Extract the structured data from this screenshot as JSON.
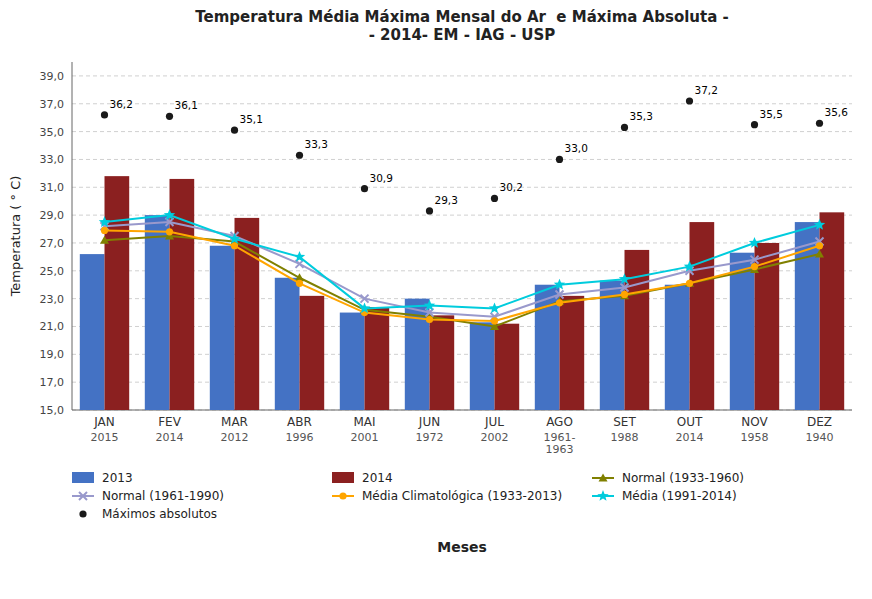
{
  "chart_data": {
    "type": "bar",
    "title": "Temperatura Média Máxima Mensal do Ar  e Máxima Absoluta -\n- 2014- EM - IAG - USP",
    "x_label": "Meses",
    "y_label": "Temperatura ( ° C)",
    "categories": [
      "JAN",
      "FEV",
      "MAR",
      "ABR",
      "MAI",
      "JUN",
      "JUL",
      "AGO",
      "SET",
      "OUT",
      "NOV",
      "DEZ"
    ],
    "category_sublabels": [
      "2015",
      "2014",
      "2012",
      "1996",
      "2001",
      "1972",
      "2002",
      "1961-\n1963",
      "1988",
      "2014",
      "1958",
      "1940"
    ],
    "series": [
      {
        "name": "2013",
        "type": "bar",
        "color": "#4472C4",
        "values": [
          26.2,
          29.0,
          26.8,
          24.5,
          22.0,
          23.0,
          21.3,
          24.0,
          24.3,
          24.0,
          26.3,
          28.5
        ]
      },
      {
        "name": "2014",
        "type": "bar",
        "color": "#8B2020",
        "values": [
          31.8,
          31.6,
          28.8,
          23.2,
          22.4,
          21.8,
          21.2,
          23.2,
          26.5,
          28.5,
          27.0,
          29.2
        ]
      },
      {
        "name": "Normal (1933-1960)",
        "type": "line",
        "color": "#808000",
        "marker": "triangle",
        "values": [
          27.2,
          27.5,
          27.1,
          24.5,
          22.2,
          21.7,
          21.0,
          22.8,
          23.2,
          24.1,
          25.1,
          26.2
        ]
      },
      {
        "name": "Normal (1961-1990)",
        "type": "line",
        "color": "#9999CC",
        "marker": "x",
        "values": [
          28.2,
          28.5,
          27.5,
          25.5,
          23.0,
          22.0,
          21.7,
          23.3,
          23.8,
          25.0,
          25.8,
          27.1
        ]
      },
      {
        "name": "Média Climatológica (1933-2013)",
        "type": "line",
        "color": "#FFA500",
        "marker": "circle",
        "values": [
          27.9,
          27.8,
          26.8,
          24.1,
          22.0,
          21.5,
          21.4,
          22.7,
          23.3,
          24.1,
          25.3,
          26.8
        ]
      },
      {
        "name": "Média (1991-2014)",
        "type": "line",
        "color": "#00CCDD",
        "marker": "star",
        "values": [
          28.5,
          29.0,
          27.3,
          26.0,
          22.3,
          22.5,
          22.3,
          24.0,
          24.4,
          25.3,
          27.0,
          28.3
        ]
      },
      {
        "name": "Máximos absolutos",
        "type": "scatter",
        "color": "#1a1a1a",
        "marker": "circle",
        "data_labels": true,
        "values": [
          36.2,
          36.1,
          35.1,
          33.3,
          30.9,
          29.3,
          30.2,
          33.0,
          35.3,
          37.2,
          35.5,
          35.6
        ],
        "value_labels": [
          "36,2",
          "36,1",
          "35,1",
          "33,3",
          "30,9",
          "29,3",
          "30,2",
          "33,0",
          "35,3",
          "37,2",
          "35,5",
          "35,6"
        ]
      }
    ],
    "ylim": [
      15.0,
      40.0
    ],
    "yticks": [
      {
        "value": 15.0,
        "label": "15,0"
      },
      {
        "value": 17.0,
        "label": "17,0"
      },
      {
        "value": 19.0,
        "label": "19,0"
      },
      {
        "value": 21.0,
        "label": "21,0"
      },
      {
        "value": 23.0,
        "label": "23,0"
      },
      {
        "value": 25.0,
        "label": "25,0"
      },
      {
        "value": 27.0,
        "label": "27,0"
      },
      {
        "value": 29.0,
        "label": "29,0"
      },
      {
        "value": 31.0,
        "label": "31,0"
      },
      {
        "value": 33.0,
        "label": "33,0"
      },
      {
        "value": 35.0,
        "label": "35,0"
      },
      {
        "value": 37.0,
        "label": "37,0"
      },
      {
        "value": 39.0,
        "label": "39,0"
      }
    ],
    "grid": true,
    "legend": "bottom"
  }
}
